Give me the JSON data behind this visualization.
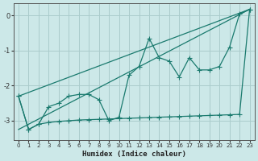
{
  "xlabel": "Humidex (Indice chaleur)",
  "background_color": "#cce8e8",
  "grid_color": "#aacccc",
  "line_color": "#1a7a6e",
  "xlim": [
    -0.5,
    23.5
  ],
  "ylim": [
    -3.55,
    0.35
  ],
  "yticks": [
    0,
    -1,
    -2,
    -3
  ],
  "xticks": [
    0,
    1,
    2,
    3,
    4,
    5,
    6,
    7,
    8,
    9,
    10,
    11,
    12,
    13,
    14,
    15,
    16,
    17,
    18,
    19,
    20,
    21,
    22,
    23
  ],
  "line1_x": [
    0,
    1,
    2,
    3,
    4,
    5,
    6,
    7,
    8,
    9,
    10,
    11,
    12,
    13,
    14,
    15,
    16,
    17,
    18,
    19,
    20,
    21,
    22,
    23
  ],
  "line1_y": [
    -2.3,
    -3.25,
    -3.1,
    -2.6,
    -2.5,
    -2.3,
    -2.25,
    -2.25,
    -2.4,
    -3.0,
    -2.9,
    -1.7,
    -1.45,
    -0.65,
    -1.2,
    -1.3,
    -1.75,
    -1.2,
    -1.55,
    -1.55,
    -1.45,
    -0.9,
    0.05,
    0.18
  ],
  "line2_x": [
    0,
    23
  ],
  "line2_y": [
    -2.3,
    0.18
  ],
  "line3_x": [
    0,
    1,
    2,
    3,
    4,
    5,
    6,
    7,
    8,
    9,
    10,
    11,
    12,
    13,
    14,
    15,
    16,
    17,
    18,
    19,
    20,
    21,
    22,
    23
  ],
  "line3_y": [
    -2.3,
    -3.25,
    -3.1,
    -3.05,
    -3.02,
    -3.0,
    -2.98,
    -2.97,
    -2.96,
    -2.95,
    -2.94,
    -2.93,
    -2.92,
    -2.91,
    -2.9,
    -2.89,
    -2.88,
    -2.87,
    -2.86,
    -2.85,
    -2.84,
    -2.83,
    -2.82,
    0.18
  ],
  "line4_x": [
    0,
    23
  ],
  "line4_y": [
    -3.25,
    0.18
  ]
}
